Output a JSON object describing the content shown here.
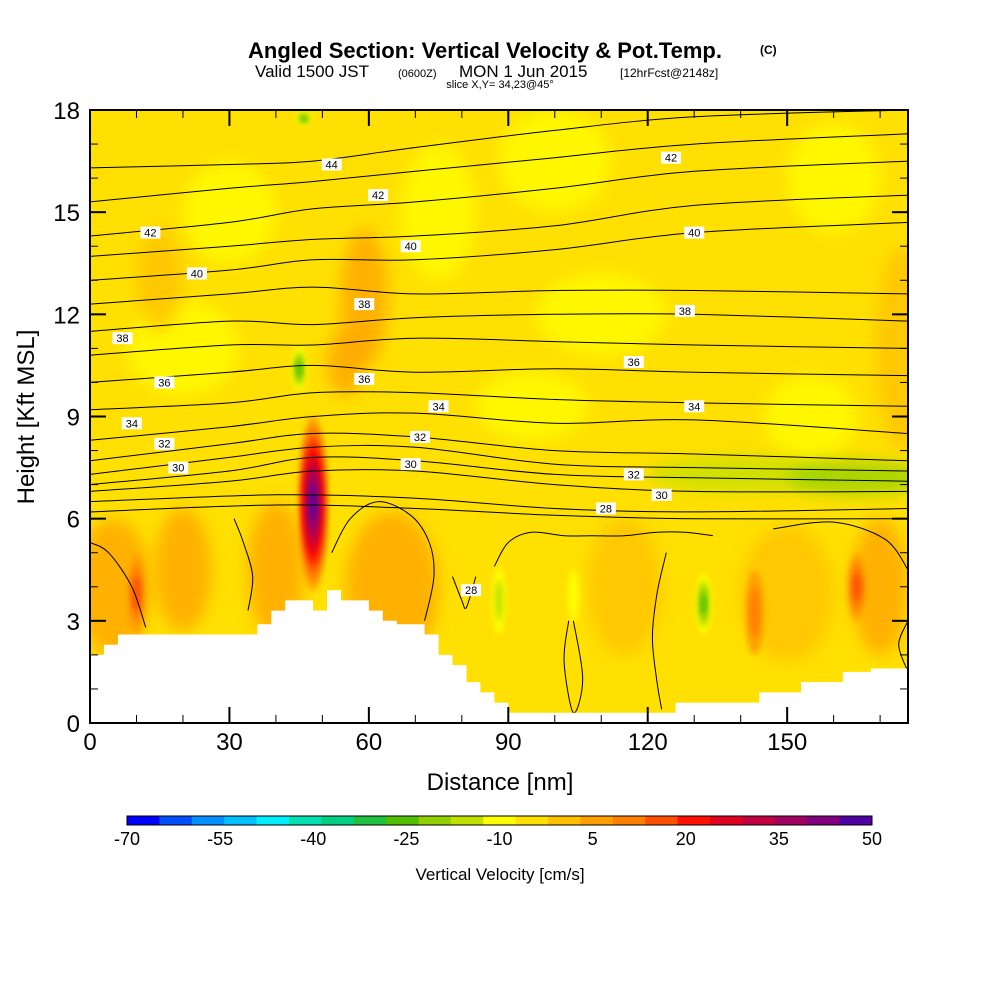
{
  "chart_data": {
    "type": "heatmap",
    "title": "Angled Section: Vertical Velocity & Pot.Temp.",
    "title_mark": "(C)",
    "subtitle": {
      "valid": "Valid 1500 JST",
      "utc": "(0600Z)",
      "date": "MON 1 Jun 2015",
      "forecast": "[12hrFcst@2148z]"
    },
    "slice_label": "slice X,Y= 34,23@45°",
    "xlabel": "Distance [nm]",
    "ylabel": "Height [Kft MSL]",
    "xlim": [
      0,
      176
    ],
    "ylim": [
      0,
      18
    ],
    "xticks": [
      "0",
      "30",
      "60",
      "90",
      "120",
      "150"
    ],
    "yticks": [
      "0",
      "3",
      "6",
      "9",
      "12",
      "15",
      "18"
    ],
    "colorbar": {
      "label": "Vertical Velocity [cm/s]",
      "tick_labels": [
        "-70",
        "-55",
        "-40",
        "-25",
        "-10",
        "5",
        "20",
        "35",
        "50"
      ],
      "colors": [
        "#0000ff",
        "#0050ff",
        "#0090ff",
        "#00c0ff",
        "#00f0ff",
        "#00e0b0",
        "#00d080",
        "#20c040",
        "#50c000",
        "#90d000",
        "#c0e000",
        "#ffff00",
        "#ffe000",
        "#ffc000",
        "#ffa000",
        "#ff8000",
        "#ff5000",
        "#ff1000",
        "#e00020",
        "#c00040",
        "#a00060",
        "#800080",
        "#5000a0"
      ]
    },
    "background_level_color": "#ffe000",
    "updrafts": [
      {
        "x": 48,
        "y_bottom": 3.9,
        "y_top": 9.0,
        "peak": 50,
        "color": "#5000a0"
      },
      {
        "x": 10,
        "y_bottom": 2.6,
        "y_top": 5.0,
        "peak": 15,
        "color": "#ff8000"
      },
      {
        "x": 165,
        "y_bottom": 3.0,
        "y_top": 5.0,
        "peak": 15,
        "color": "#ff8000"
      },
      {
        "x": 143,
        "y_bottom": 2.0,
        "y_top": 4.5,
        "peak": 10,
        "color": "#ffa000"
      }
    ],
    "downdrafts": [
      {
        "x": 45,
        "y_bottom": 9.6,
        "y_top": 11.2,
        "peak": -25,
        "color": "#20c040"
      },
      {
        "x": 46,
        "y_bottom": 17.5,
        "y_top": 18.0,
        "peak": -25,
        "color": "#20c040"
      },
      {
        "x": 88,
        "y_bottom": 2.2,
        "y_top": 5.0,
        "peak": -15,
        "color": "#90d000"
      },
      {
        "x": 132,
        "y_bottom": 2.4,
        "y_top": 4.6,
        "peak": -25,
        "color": "#20c040"
      },
      {
        "x": 104,
        "y_bottom": 2.5,
        "y_top": 5.0,
        "peak": -10,
        "color": "#c0e000"
      }
    ],
    "terrain": {
      "x": [
        0,
        3,
        3,
        6,
        6,
        36,
        36,
        39,
        39,
        42,
        42,
        48,
        48,
        51,
        51,
        54,
        54,
        60,
        60,
        63,
        63,
        66,
        66,
        72,
        72,
        75,
        75,
        78,
        78,
        81,
        81,
        84,
        84,
        87,
        87,
        90,
        90,
        126,
        126,
        144,
        144,
        153,
        153,
        162,
        162,
        168,
        168,
        176
      ],
      "y": [
        2.0,
        2.0,
        2.3,
        2.3,
        2.6,
        2.6,
        2.9,
        2.9,
        3.3,
        3.3,
        3.6,
        3.6,
        3.3,
        3.3,
        3.9,
        3.9,
        3.6,
        3.6,
        3.3,
        3.3,
        3.0,
        3.0,
        2.9,
        2.9,
        2.6,
        2.6,
        2.0,
        2.0,
        1.7,
        1.7,
        1.2,
        1.2,
        0.9,
        0.9,
        0.6,
        0.6,
        0.3,
        0.3,
        0.6,
        0.6,
        0.9,
        0.9,
        1.2,
        1.2,
        1.5,
        1.5,
        1.6,
        1.6
      ]
    },
    "isentropes": [
      {
        "level": 28,
        "points": [
          [
            0,
            6.2
          ],
          [
            40,
            6.4
          ],
          [
            70,
            6.3
          ],
          [
            100,
            6.1
          ],
          [
            130,
            6.0
          ],
          [
            176,
            6.0
          ]
        ],
        "label_at": 112
      },
      {
        "level": 29,
        "points": [
          [
            0,
            6.5
          ],
          [
            40,
            6.7
          ],
          [
            70,
            6.6
          ],
          [
            100,
            6.3
          ],
          [
            130,
            6.2
          ],
          [
            176,
            6.3
          ]
        ]
      },
      {
        "level": 30,
        "points": [
          [
            0,
            6.8
          ],
          [
            30,
            7.1
          ],
          [
            48,
            7.4
          ],
          [
            70,
            7.4
          ],
          [
            100,
            7.0
          ],
          [
            130,
            6.8
          ],
          [
            176,
            6.8
          ]
        ],
        "label_at": 20
      },
      {
        "level": 31,
        "points": [
          [
            0,
            7.0
          ],
          [
            30,
            7.4
          ],
          [
            48,
            7.8
          ],
          [
            70,
            7.7
          ],
          [
            100,
            7.3
          ],
          [
            130,
            7.2
          ],
          [
            176,
            7.1
          ]
        ]
      },
      {
        "level": 32,
        "points": [
          [
            0,
            7.3
          ],
          [
            30,
            7.8
          ],
          [
            48,
            8.1
          ],
          [
            70,
            8.1
          ],
          [
            100,
            7.6
          ],
          [
            130,
            7.5
          ],
          [
            176,
            7.4
          ]
        ],
        "label_at": 120
      },
      {
        "level": 33,
        "points": [
          [
            0,
            7.7
          ],
          [
            30,
            8.2
          ],
          [
            48,
            8.5
          ],
          [
            70,
            8.4
          ],
          [
            100,
            8.0
          ],
          [
            130,
            7.9
          ],
          [
            176,
            7.7
          ]
        ]
      },
      {
        "level": 34,
        "points": [
          [
            0,
            8.3
          ],
          [
            30,
            8.7
          ],
          [
            48,
            9.0
          ],
          [
            70,
            9.1
          ],
          [
            100,
            8.8
          ],
          [
            130,
            8.9
          ],
          [
            176,
            8.5
          ]
        ],
        "label_at": 9
      },
      {
        "level": 35,
        "points": [
          [
            0,
            9.2
          ],
          [
            30,
            9.4
          ],
          [
            48,
            9.7
          ],
          [
            70,
            9.7
          ],
          [
            100,
            9.5
          ],
          [
            130,
            9.4
          ],
          [
            176,
            9.3
          ]
        ]
      },
      {
        "level": 36,
        "points": [
          [
            0,
            10.0
          ],
          [
            30,
            10.3
          ],
          [
            48,
            10.5
          ],
          [
            70,
            10.3
          ],
          [
            100,
            10.4
          ],
          [
            130,
            10.3
          ],
          [
            176,
            10.2
          ]
        ],
        "label_at": 120
      },
      {
        "level": 37,
        "points": [
          [
            0,
            10.8
          ],
          [
            30,
            11.1
          ],
          [
            48,
            11.1
          ],
          [
            70,
            11.3
          ],
          [
            100,
            11.2
          ],
          [
            130,
            11.1
          ],
          [
            176,
            11.0
          ]
        ]
      },
      {
        "level": 38,
        "points": [
          [
            0,
            11.5
          ],
          [
            30,
            11.8
          ],
          [
            48,
            11.7
          ],
          [
            70,
            11.9
          ],
          [
            100,
            12.0
          ],
          [
            130,
            12.0
          ],
          [
            176,
            11.8
          ]
        ],
        "label_at": 128
      },
      {
        "level": 39,
        "points": [
          [
            0,
            12.3
          ],
          [
            30,
            12.6
          ],
          [
            48,
            12.8
          ],
          [
            70,
            12.6
          ],
          [
            100,
            12.7
          ],
          [
            130,
            12.7
          ],
          [
            176,
            12.6
          ]
        ]
      },
      {
        "level": 40,
        "points": [
          [
            0,
            13.0
          ],
          [
            30,
            13.3
          ],
          [
            48,
            13.6
          ],
          [
            70,
            13.6
          ],
          [
            100,
            13.9
          ],
          [
            130,
            14.4
          ],
          [
            176,
            14.7
          ]
        ],
        "label_at": 130
      },
      {
        "level": 41,
        "points": [
          [
            0,
            13.7
          ],
          [
            30,
            14.0
          ],
          [
            48,
            14.2
          ],
          [
            70,
            14.3
          ],
          [
            100,
            14.6
          ],
          [
            130,
            15.2
          ],
          [
            176,
            15.5
          ]
        ]
      },
      {
        "level": 42,
        "points": [
          [
            0,
            14.3
          ],
          [
            30,
            14.7
          ],
          [
            48,
            15.1
          ],
          [
            70,
            15.3
          ],
          [
            100,
            15.7
          ],
          [
            130,
            16.2
          ],
          [
            176,
            16.5
          ]
        ],
        "label_at": 125
      },
      {
        "level": 43,
        "points": [
          [
            0,
            15.3
          ],
          [
            30,
            15.7
          ],
          [
            48,
            15.9
          ],
          [
            70,
            16.2
          ],
          [
            100,
            16.6
          ],
          [
            130,
            17.0
          ],
          [
            176,
            17.3
          ]
        ]
      },
      {
        "level": 44,
        "points": [
          [
            0,
            16.3
          ],
          [
            30,
            16.4
          ],
          [
            48,
            16.5
          ],
          [
            70,
            16.9
          ],
          [
            100,
            17.4
          ],
          [
            130,
            17.8
          ],
          [
            176,
            18.0
          ]
        ],
        "label_at": 52
      }
    ],
    "contour_labels": [
      {
        "text": "44",
        "x": 52,
        "y": 16.4
      },
      {
        "text": "42",
        "x": 125,
        "y": 16.6
      },
      {
        "text": "42",
        "x": 62,
        "y": 15.5
      },
      {
        "text": "42",
        "x": 13,
        "y": 14.4
      },
      {
        "text": "40",
        "x": 69,
        "y": 14.0
      },
      {
        "text": "40",
        "x": 130,
        "y": 14.4
      },
      {
        "text": "40",
        "x": 23,
        "y": 13.2
      },
      {
        "text": "38",
        "x": 59,
        "y": 12.3
      },
      {
        "text": "38",
        "x": 128,
        "y": 12.1
      },
      {
        "text": "38",
        "x": 7,
        "y": 11.3
      },
      {
        "text": "36",
        "x": 117,
        "y": 10.6
      },
      {
        "text": "36",
        "x": 16,
        "y": 10.0
      },
      {
        "text": "36",
        "x": 59,
        "y": 10.1
      },
      {
        "text": "34",
        "x": 75,
        "y": 9.3
      },
      {
        "text": "34",
        "x": 130,
        "y": 9.3
      },
      {
        "text": "34",
        "x": 9,
        "y": 8.8
      },
      {
        "text": "32",
        "x": 71,
        "y": 8.4
      },
      {
        "text": "32",
        "x": 16,
        "y": 8.2
      },
      {
        "text": "32",
        "x": 117,
        "y": 7.3
      },
      {
        "text": "30",
        "x": 69,
        "y": 7.6
      },
      {
        "text": "30",
        "x": 19,
        "y": 7.5
      },
      {
        "text": "30",
        "x": 123,
        "y": 6.7
      },
      {
        "text": "28",
        "x": 111,
        "y": 6.3
      },
      {
        "text": "28",
        "x": 82,
        "y": 3.9
      }
    ],
    "low_level_contours": [
      {
        "level": 28,
        "points": [
          [
            0,
            5.3
          ],
          [
            4,
            5.0
          ],
          [
            9,
            4.0
          ],
          [
            12,
            2.8
          ]
        ]
      },
      {
        "level": 28,
        "points": [
          [
            31,
            6.0
          ],
          [
            33,
            5.3
          ],
          [
            35,
            4.3
          ],
          [
            34,
            3.3
          ]
        ]
      },
      {
        "level": 28,
        "points": [
          [
            52,
            5.0
          ],
          [
            56,
            6.0
          ],
          [
            62,
            6.5
          ],
          [
            69,
            6.1
          ],
          [
            73,
            5.3
          ],
          [
            74,
            4.3
          ],
          [
            72,
            3.0
          ]
        ]
      },
      {
        "level": 28,
        "points": [
          [
            78,
            4.3
          ],
          [
            80,
            3.6
          ],
          [
            81,
            3.4
          ],
          [
            83,
            4.3
          ]
        ]
      },
      {
        "level": 28,
        "points": [
          [
            87,
            4.6
          ],
          [
            90,
            5.3
          ],
          [
            95,
            5.6
          ],
          [
            102,
            5.5
          ],
          [
            108,
            5.5
          ],
          [
            115,
            5.5
          ],
          [
            122,
            5.6
          ],
          [
            128,
            5.6
          ],
          [
            134,
            5.5
          ]
        ]
      },
      {
        "level": 28,
        "points": [
          [
            124,
            5.0
          ],
          [
            122,
            3.8
          ],
          [
            121,
            2.5
          ],
          [
            122,
            1.2
          ],
          [
            123,
            0.4
          ]
        ]
      },
      {
        "level": 28,
        "points": [
          [
            103,
            3.0
          ],
          [
            102,
            1.8
          ],
          [
            104,
            0.3
          ],
          [
            106,
            1.3
          ],
          [
            104,
            3.0
          ]
        ]
      },
      {
        "level": 28,
        "points": [
          [
            147,
            5.7
          ],
          [
            160,
            5.9
          ],
          [
            171,
            5.4
          ],
          [
            176,
            4.5
          ]
        ]
      },
      {
        "level": 28,
        "points": [
          [
            176,
            3.0
          ],
          [
            174,
            2.3
          ],
          [
            176,
            1.5
          ]
        ]
      }
    ]
  }
}
